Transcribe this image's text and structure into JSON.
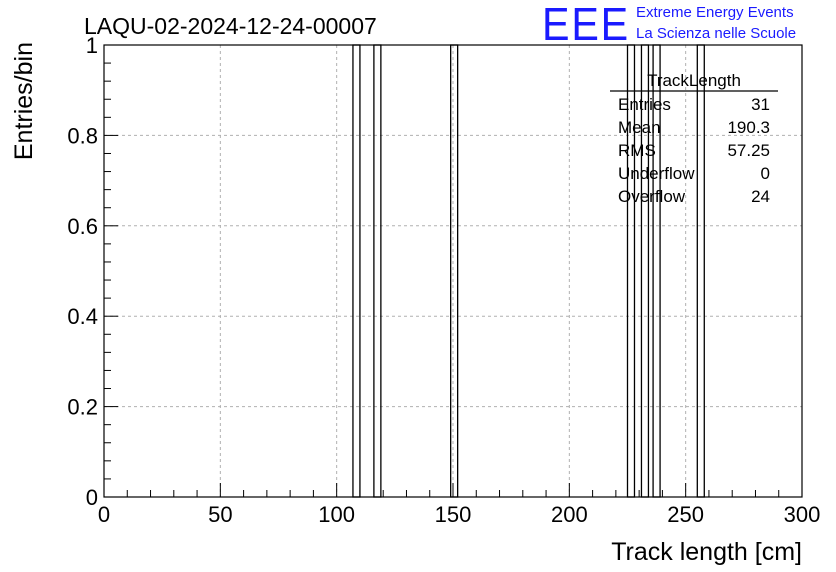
{
  "header": {
    "title": "LAQU-02-2024-12-24-00007",
    "logo_text": "EEE",
    "logo_line1": "Extreme Energy Events",
    "logo_line2": "La Scienza nelle Scuole",
    "logo_color": "#1a1aff"
  },
  "stats": {
    "name": "TrackLength",
    "rows": [
      {
        "label": "Entries",
        "value": "31"
      },
      {
        "label": "Mean",
        "value": "190.3"
      },
      {
        "label": "RMS",
        "value": "57.25"
      },
      {
        "label": "Underflow",
        "value": "0"
      },
      {
        "label": "Overflow",
        "value": "24"
      }
    ]
  },
  "chart_data": {
    "type": "bar",
    "title": "LAQU-02-2024-12-24-00007",
    "xlabel": "Track length [cm]",
    "ylabel": "Entries/bin",
    "xlim": [
      0,
      300
    ],
    "ylim": [
      0,
      1
    ],
    "grid": true,
    "xticks": [
      "0",
      "50",
      "100",
      "150",
      "200",
      "250",
      "300"
    ],
    "yticks": [
      "0",
      "0.2",
      "0.4",
      "0.6",
      "0.8",
      "1"
    ],
    "bars": [
      {
        "x0": 107,
        "x1": 110,
        "value": 1
      },
      {
        "x0": 116,
        "x1": 119,
        "value": 1
      },
      {
        "x0": 149,
        "x1": 152,
        "value": 1
      },
      {
        "x0": 225,
        "x1": 228,
        "value": 1
      },
      {
        "x0": 231,
        "x1": 234,
        "value": 1
      },
      {
        "x0": 236,
        "x1": 239,
        "value": 1
      },
      {
        "x0": 255,
        "x1": 258,
        "value": 1
      }
    ]
  }
}
